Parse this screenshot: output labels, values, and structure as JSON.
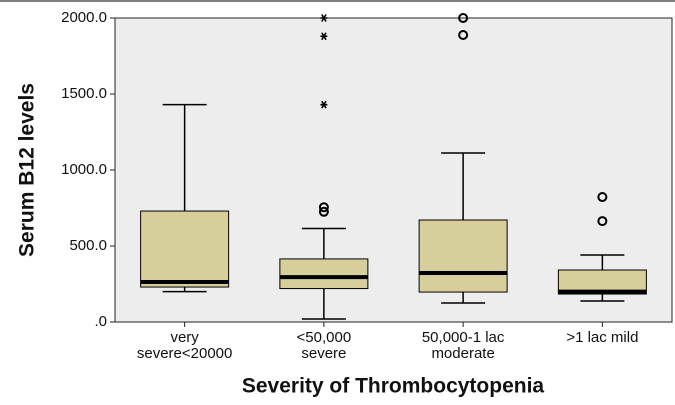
{
  "chart_data": {
    "type": "box",
    "ylabel": "Serum B12 levels",
    "xlabel": "Severity of Thrombocytopenia",
    "categories": [
      [
        "very",
        "severe<20000"
      ],
      [
        "<50,000",
        "severe"
      ],
      [
        "50,000-1 lac",
        "moderate"
      ],
      [
        ">1 lac mild"
      ]
    ],
    "boxes": [
      {
        "min": 200,
        "q1": 230,
        "median": 263,
        "q3": 730,
        "max": 1430,
        "outliers": [],
        "extremes": []
      },
      {
        "min": 20,
        "q1": 220,
        "median": 295,
        "q3": 415,
        "max": 615,
        "outliers": [
          725,
          755
        ],
        "extremes": [
          1430,
          1880,
          2000
        ]
      },
      {
        "min": 125,
        "q1": 197,
        "median": 322,
        "q3": 671,
        "max": 1112,
        "outliers": [
          1888,
          2000
        ],
        "extremes": []
      },
      {
        "min": 138,
        "q1": 184,
        "median": 200,
        "q3": 342,
        "max": 441,
        "outliers": [
          664,
          822
        ],
        "extremes": []
      }
    ],
    "color": "#d6cf9c",
    "ylim": [
      0,
      2000
    ],
    "yticks": [
      {
        "value": 0,
        "label": ".0"
      },
      {
        "value": 500,
        "label": "500.0"
      },
      {
        "value": 1000,
        "label": "1000.0"
      },
      {
        "value": 1500,
        "label": "1500.0"
      },
      {
        "value": 2000,
        "label": "2000.0"
      }
    ]
  }
}
